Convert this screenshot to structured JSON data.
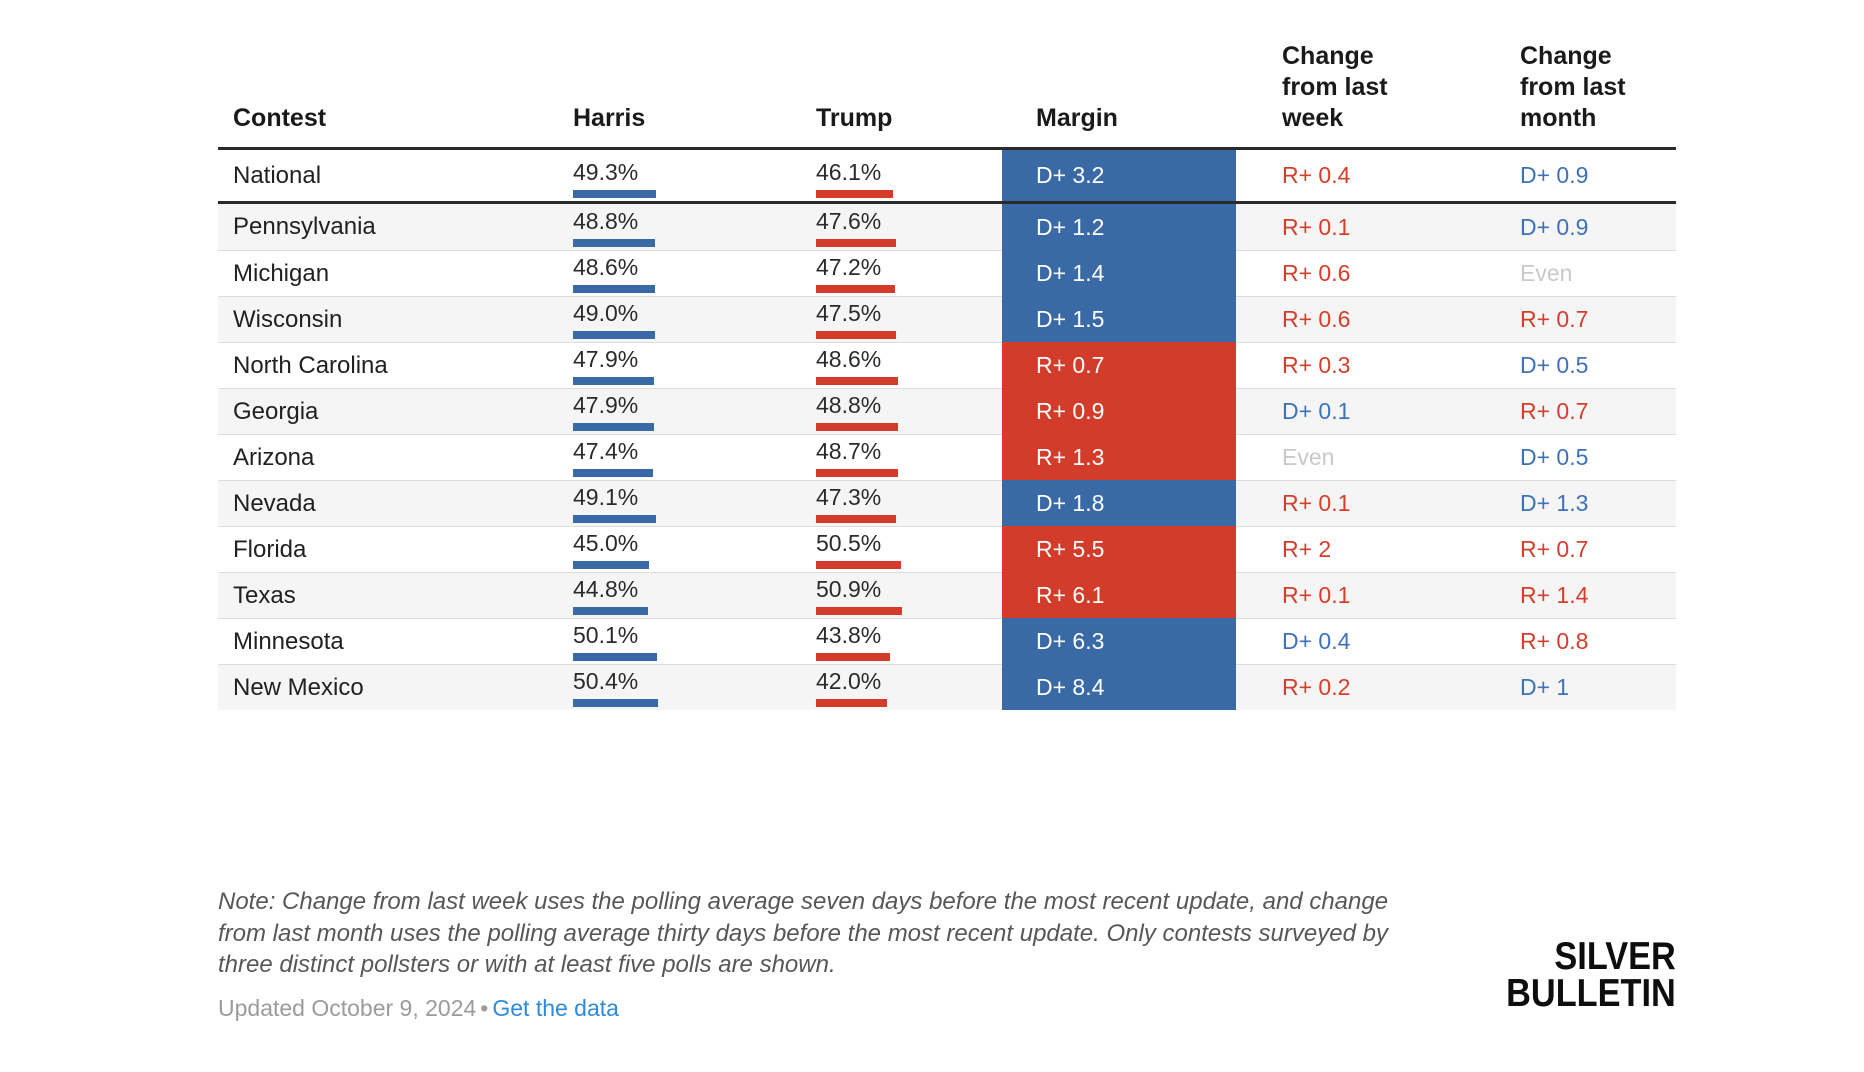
{
  "colors": {
    "dem": "#3a6aa5",
    "rep": "#d33b2a",
    "dem_text": "#3d72b9",
    "rep_text": "#d63d2b",
    "even_text": "#c9c9c9",
    "link": "#2f8ad8"
  },
  "chart_data": {
    "type": "table",
    "columns": [
      "Contest",
      "Harris",
      "Trump",
      "Margin",
      "Change from last week",
      "Change from last month"
    ],
    "rows": [
      {
        "contest": "National",
        "harris": "49.3%",
        "harris_pct": 49.3,
        "trump": "46.1%",
        "trump_pct": 46.1,
        "margin": "D+ 3.2",
        "margin_leader": "D",
        "week": "R+ 0.4",
        "month": "D+ 0.9"
      },
      {
        "contest": "Pennsylvania",
        "harris": "48.8%",
        "harris_pct": 48.8,
        "trump": "47.6%",
        "trump_pct": 47.6,
        "margin": "D+ 1.2",
        "margin_leader": "D",
        "week": "R+ 0.1",
        "month": "D+ 0.9"
      },
      {
        "contest": "Michigan",
        "harris": "48.6%",
        "harris_pct": 48.6,
        "trump": "47.2%",
        "trump_pct": 47.2,
        "margin": "D+ 1.4",
        "margin_leader": "D",
        "week": "R+ 0.6",
        "month": "Even"
      },
      {
        "contest": "Wisconsin",
        "harris": "49.0%",
        "harris_pct": 49.0,
        "trump": "47.5%",
        "trump_pct": 47.5,
        "margin": "D+ 1.5",
        "margin_leader": "D",
        "week": "R+ 0.6",
        "month": "R+ 0.7"
      },
      {
        "contest": "North Carolina",
        "harris": "47.9%",
        "harris_pct": 47.9,
        "trump": "48.6%",
        "trump_pct": 48.6,
        "margin": "R+ 0.7",
        "margin_leader": "R",
        "week": "R+ 0.3",
        "month": "D+ 0.5"
      },
      {
        "contest": "Georgia",
        "harris": "47.9%",
        "harris_pct": 47.9,
        "trump": "48.8%",
        "trump_pct": 48.8,
        "margin": "R+ 0.9",
        "margin_leader": "R",
        "week": "D+ 0.1",
        "month": "R+ 0.7"
      },
      {
        "contest": "Arizona",
        "harris": "47.4%",
        "harris_pct": 47.4,
        "trump": "48.7%",
        "trump_pct": 48.7,
        "margin": "R+ 1.3",
        "margin_leader": "R",
        "week": "Even",
        "month": "D+ 0.5"
      },
      {
        "contest": "Nevada",
        "harris": "49.1%",
        "harris_pct": 49.1,
        "trump": "47.3%",
        "trump_pct": 47.3,
        "margin": "D+ 1.8",
        "margin_leader": "D",
        "week": "R+ 0.1",
        "month": "D+ 1.3"
      },
      {
        "contest": "Florida",
        "harris": "45.0%",
        "harris_pct": 45.0,
        "trump": "50.5%",
        "trump_pct": 50.5,
        "margin": "R+ 5.5",
        "margin_leader": "R",
        "week": "R+ 2",
        "month": "R+ 0.7"
      },
      {
        "contest": "Texas",
        "harris": "44.8%",
        "harris_pct": 44.8,
        "trump": "50.9%",
        "trump_pct": 50.9,
        "margin": "R+ 6.1",
        "margin_leader": "R",
        "week": "R+ 0.1",
        "month": "R+ 1.4"
      },
      {
        "contest": "Minnesota",
        "harris": "50.1%",
        "harris_pct": 50.1,
        "trump": "43.8%",
        "trump_pct": 43.8,
        "margin": "D+ 6.3",
        "margin_leader": "D",
        "week": "D+ 0.4",
        "month": "R+ 0.8"
      },
      {
        "contest": "New Mexico",
        "harris": "50.4%",
        "harris_pct": 50.4,
        "trump": "42.0%",
        "trump_pct": 42.0,
        "margin": "D+ 8.4",
        "margin_leader": "D",
        "week": "R+ 0.2",
        "month": "D+ 1"
      }
    ]
  },
  "header": {
    "contest": "Contest",
    "harris": "Harris",
    "trump": "Trump",
    "margin": "Margin",
    "week": "Change from last week",
    "month": "Change from last month"
  },
  "footer": {
    "note": "Note: Change from last week uses the polling average seven days before the most recent update, and change from last month uses the polling average thirty days before the most recent update. Only contests surveyed by three distinct pollsters or with at least five polls are shown.",
    "updated": "Updated October 9, 2024",
    "bullet": "•",
    "link_label": "Get the data"
  },
  "logo": {
    "line1": "SILVER",
    "line2": "BULLETIN"
  }
}
